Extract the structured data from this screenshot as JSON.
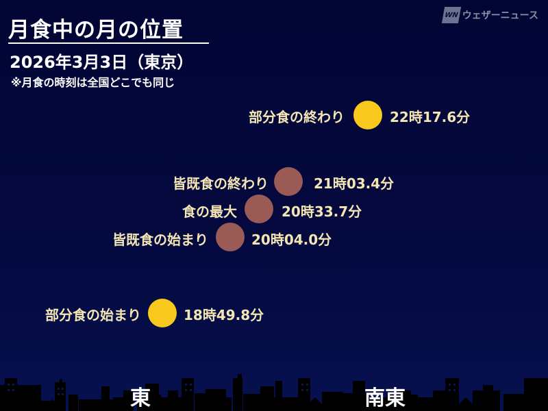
{
  "header": {
    "title": "月食中の月の位置",
    "date": "2026年3月3日（東京）",
    "note": "※月食の時刻は全国どこでも同じ"
  },
  "logo": {
    "mark": "WN",
    "text": "ウェザーニュース"
  },
  "colors": {
    "partial_moon": "#f8c81c",
    "total_moon": "#9a5a56",
    "label": "#f4e6b4",
    "background": "#020534"
  },
  "events": [
    {
      "label": "部分食の終わり",
      "time": "22時17.6分",
      "phase": "partial"
    },
    {
      "label": "皆既食の終わり",
      "time": "21時03.4分",
      "phase": "total"
    },
    {
      "label": "食の最大",
      "time": "20時33.7分",
      "phase": "total"
    },
    {
      "label": "皆既食の始まり",
      "time": "20時04.0分",
      "phase": "total"
    },
    {
      "label": "部分食の始まり",
      "time": "18時49.8分",
      "phase": "partial"
    }
  ],
  "directions": {
    "east": "東",
    "southeast": "南東"
  }
}
